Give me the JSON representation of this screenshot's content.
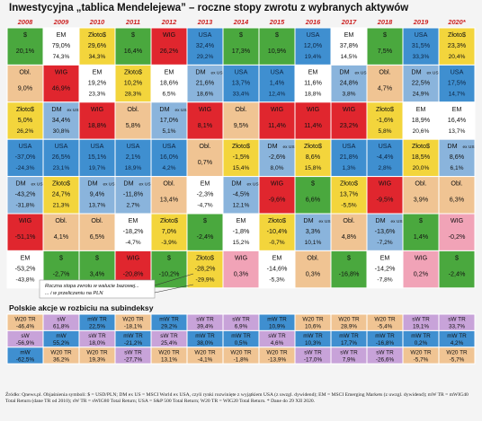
{
  "title": "Inwestycyjna „tablica Mendelejewa” – roczne stopy zwrotu z wybranych aktywów",
  "callout": [
    "Roczna stopa zwrotu w walucie bazowej...",
    "... i w przeliczeniu na PLN"
  ],
  "subtitle": "Polskie akcje w rozbiciu na subindeksy",
  "footnote": "Źródło: Qnews.pl. Objaśnienia symboli: $ = USD/PLN; DM ex US = MSCI World ex USA, czyli rynki rozwinięte z wyjątkiem USA (z uwzgl. dywidend); EM = MSCI Emerging Markets (z uwzgl. dywidend); mW TR = mWIG40 Total Return (dane TR od 2010); sW TR = sWIG80 Total Return; USA = S&P 500 Total Return; W20 TR = WIG20 Total Return. * Dane do 29 XII 2020.",
  "colors": {
    "header": "#cc1f1f",
    "$": "#4aa83e",
    "EM": "#ffffff",
    "Złoto$": "#f3d53c",
    "Obl.": "#f0c493",
    "WIG": "#e0262e",
    "USA": "#3f8fd0",
    "DM": "#8ab4dc",
    "WIG_light": "#f1a3b7",
    "W20": "#f0c493",
    "mW": "#3f8fd0",
    "sW": "#c8a3d9"
  },
  "chart_data": {
    "type": "table",
    "years": [
      "2008",
      "2009",
      "2010",
      "2011",
      "2012",
      "2013",
      "2014",
      "2015",
      "2016",
      "2017",
      "2018",
      "2019",
      "2020*"
    ],
    "columns": [
      [
        {
          "k": "$",
          "n": "$",
          "v": [
            "20,1%"
          ]
        },
        {
          "k": "Obl.",
          "n": "Obl.",
          "v": [
            "9,0%"
          ]
        },
        {
          "k": "Złoto$",
          "n": "Złoto$",
          "v": [
            "5,0%",
            "26,2%"
          ]
        },
        {
          "k": "USA",
          "n": "USA",
          "v": [
            "-37,0%",
            "-24,3%"
          ]
        },
        {
          "k": "DM",
          "n": "DM",
          "x": "ex US",
          "v": [
            "-43,2%",
            "-31,8%"
          ]
        },
        {
          "k": "WIG",
          "n": "WIG",
          "v": [
            "-51,1%"
          ]
        },
        {
          "k": "EM",
          "n": "EM",
          "v": [
            "-53,2%",
            "-43,8%"
          ]
        }
      ],
      [
        {
          "k": "EM",
          "n": "EM",
          "v": [
            "79,0%",
            "74,3%"
          ]
        },
        {
          "k": "WIG",
          "n": "WIG",
          "v": [
            "46,9%"
          ]
        },
        {
          "k": "DM",
          "n": "DM",
          "x": "ex US",
          "v": [
            "34,4%",
            "30,8%"
          ]
        },
        {
          "k": "USA",
          "n": "USA",
          "v": [
            "26,5%",
            "23,1%"
          ]
        },
        {
          "k": "Złoto$",
          "n": "Złoto$",
          "v": [
            "24,7%",
            "21,3%"
          ]
        },
        {
          "k": "Obl.",
          "n": "Obl.",
          "v": [
            "4,1%"
          ]
        },
        {
          "k": "$",
          "n": "$",
          "v": [
            "-2,7%"
          ]
        }
      ],
      [
        {
          "k": "Złoto$",
          "n": "Złoto$",
          "v": [
            "29,6%",
            "34,3%"
          ]
        },
        {
          "k": "EM",
          "n": "EM",
          "v": [
            "19,2%",
            "23,3%"
          ]
        },
        {
          "k": "WIG",
          "n": "WIG",
          "v": [
            "18,8%"
          ]
        },
        {
          "k": "USA",
          "n": "USA",
          "v": [
            "15,1%",
            "19,7%"
          ]
        },
        {
          "k": "DM",
          "n": "DM",
          "x": "ex US",
          "v": [
            "9,4%",
            "13,7%"
          ]
        },
        {
          "k": "Obl.",
          "n": "Obl.",
          "v": [
            "6,5%"
          ]
        },
        {
          "k": "$",
          "n": "$",
          "v": [
            "3,4%"
          ]
        }
      ],
      [
        {
          "k": "$",
          "n": "$",
          "v": [
            "16,4%"
          ]
        },
        {
          "k": "Złoto$",
          "n": "Złoto$",
          "v": [
            "10,2%",
            "28,3%"
          ]
        },
        {
          "k": "Obl.",
          "n": "Obl.",
          "v": [
            "5,8%"
          ]
        },
        {
          "k": "USA",
          "n": "USA",
          "v": [
            "2,1%",
            "18,9%"
          ]
        },
        {
          "k": "DM",
          "n": "DM",
          "x": "ex US",
          "v": [
            "-11,8%",
            "2,7%"
          ]
        },
        {
          "k": "EM",
          "n": "EM",
          "v": [
            "-18,2%",
            "-4,7%"
          ]
        },
        {
          "k": "WIG",
          "n": "WIG",
          "v": [
            "-20,8%"
          ]
        }
      ],
      [
        {
          "k": "WIG",
          "n": "WIG",
          "v": [
            "26,2%"
          ]
        },
        {
          "k": "EM",
          "n": "EM",
          "v": [
            "18,6%",
            "6,5%"
          ]
        },
        {
          "k": "DM",
          "n": "DM",
          "x": "ex US",
          "v": [
            "17,0%",
            "5,1%"
          ]
        },
        {
          "k": "USA",
          "n": "USA",
          "v": [
            "16,0%",
            "4,2%"
          ]
        },
        {
          "k": "Obl.",
          "n": "Obl.",
          "v": [
            "13,4%"
          ]
        },
        {
          "k": "Złoto$",
          "n": "Złoto$",
          "v": [
            "7,0%",
            "-3,9%"
          ]
        },
        {
          "k": "$",
          "n": "$",
          "v": [
            "-10,2%"
          ]
        }
      ],
      [
        {
          "k": "USA",
          "n": "USA",
          "v": [
            "32,4%",
            "29,2%"
          ]
        },
        {
          "k": "DM",
          "n": "DM",
          "x": "ex US",
          "v": [
            "21,6%",
            "18,6%"
          ]
        },
        {
          "k": "WIG",
          "n": "WIG",
          "v": [
            "8,1%"
          ]
        },
        {
          "k": "Obl.",
          "n": "Obl.",
          "v": [
            "0,7%"
          ]
        },
        {
          "k": "EM",
          "n": "EM",
          "v": [
            "-2,3%",
            "-4,7%"
          ]
        },
        {
          "k": "$",
          "n": "$",
          "v": [
            "-2,4%"
          ]
        },
        {
          "k": "Złoto$",
          "n": "Złoto$",
          "v": [
            "-28,2%",
            "-29,9%"
          ]
        }
      ],
      [
        {
          "k": "$",
          "n": "$",
          "v": [
            "17,3%"
          ]
        },
        {
          "k": "USA",
          "n": "USA",
          "v": [
            "13,7%",
            "33,4%"
          ]
        },
        {
          "k": "Obl.",
          "n": "Obl.",
          "v": [
            "9,5%"
          ]
        },
        {
          "k": "Złoto$",
          "n": "Złoto$",
          "v": [
            "-1,5%",
            "15,4%"
          ]
        },
        {
          "k": "DM",
          "n": "DM",
          "x": "ex US",
          "v": [
            "-4,5%",
            "12,1%"
          ]
        },
        {
          "k": "EM",
          "n": "EM",
          "v": [
            "-1,8%",
            "15,2%"
          ]
        },
        {
          "k": "WIG",
          "n": "WIG",
          "v": [
            "0,3%"
          ]
        }
      ],
      [
        {
          "k": "$",
          "n": "$",
          "v": [
            "10,9%"
          ]
        },
        {
          "k": "USA",
          "n": "USA",
          "v": [
            "1,4%",
            "12,4%"
          ]
        },
        {
          "k": "WIG",
          "n": "WIG",
          "v": [
            "11,4%"
          ]
        },
        {
          "k": "DM",
          "n": "DM",
          "x": "ex US",
          "v": [
            "-2,6%",
            "8,0%"
          ]
        },
        {
          "k": "WIG",
          "n": "WIG",
          "v": [
            "-9,6%"
          ]
        },
        {
          "k": "Złoto$",
          "n": "Złoto$",
          "v": [
            "-10,4%",
            "-0,7%"
          ]
        },
        {
          "k": "EM",
          "n": "EM",
          "v": [
            "-14,6%",
            "-5,3%"
          ]
        }
      ],
      [
        {
          "k": "USA",
          "n": "USA",
          "v": [
            "12,0%",
            "19,4%"
          ]
        },
        {
          "k": "EM",
          "n": "EM",
          "v": [
            "11,6%",
            "18,8%"
          ]
        },
        {
          "k": "WIG",
          "n": "WIG",
          "v": [
            "11,4%"
          ]
        },
        {
          "k": "Złoto$",
          "n": "Złoto$",
          "v": [
            "8,6%",
            "15,8%"
          ]
        },
        {
          "k": "$",
          "n": "$",
          "v": [
            "6,6%"
          ]
        },
        {
          "k": "DM",
          "n": "DM",
          "x": "ex US",
          "v": [
            "3,3%",
            "10,1%"
          ]
        },
        {
          "k": "Obl.",
          "n": "Obl.",
          "v": [
            "0,3%"
          ]
        }
      ],
      [
        {
          "k": "EM",
          "n": "EM",
          "v": [
            "37,8%",
            "14,5%"
          ]
        },
        {
          "k": "DM",
          "n": "DM",
          "x": "ex US",
          "v": [
            "24,8%",
            "3,8%"
          ]
        },
        {
          "k": "WIG",
          "n": "WIG",
          "v": [
            "23,2%"
          ]
        },
        {
          "k": "USA",
          "n": "USA",
          "v": [
            "21,8%",
            "1,3%"
          ]
        },
        {
          "k": "Złoto$",
          "n": "Złoto$",
          "v": [
            "13,7%",
            "-5,5%"
          ]
        },
        {
          "k": "Obl.",
          "n": "Obl.",
          "v": [
            "4,8%"
          ]
        },
        {
          "k": "$",
          "n": "$",
          "v": [
            "-16,8%"
          ]
        }
      ],
      [
        {
          "k": "$",
          "n": "$",
          "v": [
            "7,5%"
          ]
        },
        {
          "k": "Obl.",
          "n": "Obl.",
          "v": [
            "4,7%"
          ]
        },
        {
          "k": "Złoto$",
          "n": "Złoto$",
          "v": [
            "-1,6%",
            "5,8%"
          ]
        },
        {
          "k": "USA",
          "n": "USA",
          "v": [
            "-4,4%",
            "2,8%"
          ]
        },
        {
          "k": "WIG",
          "n": "WIG",
          "v": [
            "-9,5%"
          ]
        },
        {
          "k": "DM",
          "n": "DM",
          "x": "ex US",
          "v": [
            "-13,6%",
            "-7,2%"
          ]
        },
        {
          "k": "EM",
          "n": "EM",
          "v": [
            "-14,2%",
            "-7,8%"
          ]
        }
      ],
      [
        {
          "k": "USA",
          "n": "USA",
          "v": [
            "31,5%",
            "33,3%"
          ]
        },
        {
          "k": "DM",
          "n": "DM",
          "x": "ex US",
          "v": [
            "22,5%",
            "24,9%"
          ]
        },
        {
          "k": "EM",
          "n": "EM",
          "v": [
            "18,9%",
            "20,6%"
          ]
        },
        {
          "k": "Złoto$",
          "n": "Złoto$",
          "v": [
            "18,5%",
            "20,0%"
          ]
        },
        {
          "k": "Obl.",
          "n": "Obl.",
          "v": [
            "3,9%"
          ]
        },
        {
          "k": "$",
          "n": "$",
          "v": [
            "1,4%"
          ]
        },
        {
          "k": "WIG",
          "n": "WIG",
          "v": [
            "0,2%"
          ]
        }
      ],
      [
        {
          "k": "Złoto$",
          "n": "Złoto$",
          "v": [
            "23,3%",
            "20,4%"
          ]
        },
        {
          "k": "USA",
          "n": "USA",
          "v": [
            "17,5%",
            "14,7%"
          ]
        },
        {
          "k": "EM",
          "n": "EM",
          "v": [
            "16,4%",
            "13,7%"
          ]
        },
        {
          "k": "DM",
          "n": "DM",
          "x": "ex US",
          "v": [
            "8,6%",
            "6,1%"
          ]
        },
        {
          "k": "Obl.",
          "n": "Obl.",
          "v": [
            "6,3%"
          ]
        },
        {
          "k": "WIG",
          "n": "WIG",
          "v": [
            "-0,2%"
          ]
        },
        {
          "k": "$",
          "n": "$",
          "v": [
            "-2,4%"
          ]
        }
      ]
    ],
    "sub_index": [
      [
        {
          "k": "W20",
          "n": "W20 TR",
          "v": "-46,4%"
        },
        {
          "k": "sW",
          "n": "sW",
          "v": "-56,9%"
        },
        {
          "k": "mW",
          "n": "mW",
          "v": "-62,5%"
        }
      ],
      [
        {
          "k": "sW",
          "n": "sW",
          "v": "61,8%"
        },
        {
          "k": "mW",
          "n": "mW",
          "v": "55,2%"
        },
        {
          "k": "W20",
          "n": "W20 TR",
          "v": "36,2%"
        }
      ],
      [
        {
          "k": "mW",
          "n": "mW TR",
          "v": "22,5%"
        },
        {
          "k": "sW",
          "n": "sW TR",
          "v": "18,0%"
        },
        {
          "k": "W20",
          "n": "W20 TR",
          "v": "19,3%"
        }
      ],
      [
        {
          "k": "W20",
          "n": "W20 TR",
          "v": "-18,1%"
        },
        {
          "k": "mW",
          "n": "mW TR",
          "v": "-21,2%"
        },
        {
          "k": "sW",
          "n": "sW TR",
          "v": "-27,7%"
        }
      ],
      [
        {
          "k": "mW",
          "n": "mW TR",
          "v": "29,2%"
        },
        {
          "k": "sW",
          "n": "sW TR",
          "v": "25,4%"
        },
        {
          "k": "W20",
          "n": "W20 TR",
          "v": "13,1%"
        }
      ],
      [
        {
          "k": "sW",
          "n": "sW TR",
          "v": "39,4%"
        },
        {
          "k": "mW",
          "n": "mW TR",
          "v": "38,0%"
        },
        {
          "k": "W20",
          "n": "W20 TR",
          "v": "-4,1%"
        }
      ],
      [
        {
          "k": "sW",
          "n": "sW TR",
          "v": "6,9%"
        },
        {
          "k": "mW",
          "n": "mW TR",
          "v": "0,5%"
        },
        {
          "k": "W20",
          "n": "W20 TR",
          "v": "-1,8%"
        }
      ],
      [
        {
          "k": "mW",
          "n": "mW TR",
          "v": "10,9%"
        },
        {
          "k": "sW",
          "n": "sW TR",
          "v": "4,6%"
        },
        {
          "k": "W20",
          "n": "W20 TR",
          "v": "-13,9%"
        }
      ],
      [
        {
          "k": "W20",
          "n": "W20 TR",
          "v": "10,6%"
        },
        {
          "k": "mW",
          "n": "mW TR",
          "v": "10,3%"
        },
        {
          "k": "sW",
          "n": "sW TR",
          "v": "-17,0%"
        }
      ],
      [
        {
          "k": "W20",
          "n": "W20 TR",
          "v": "28,9%"
        },
        {
          "k": "mW",
          "n": "mW TR",
          "v": "17,7%"
        },
        {
          "k": "sW",
          "n": "sW TR",
          "v": "7,9%"
        }
      ],
      [
        {
          "k": "W20",
          "n": "W20 TR",
          "v": "-5,4%"
        },
        {
          "k": "mW",
          "n": "mW TR",
          "v": "-16,8%"
        },
        {
          "k": "sW",
          "n": "sW TR",
          "v": "-26,6%"
        }
      ],
      [
        {
          "k": "sW",
          "n": "sW TR",
          "v": "19,1%"
        },
        {
          "k": "mW",
          "n": "mW TR",
          "v": "0,2%"
        },
        {
          "k": "W20",
          "n": "W20 TR",
          "v": "-5,7%"
        }
      ],
      [
        {
          "k": "sW",
          "n": "sW TR",
          "v": "33,7%"
        },
        {
          "k": "mW",
          "n": "mW TR",
          "v": "4,2%"
        },
        {
          "k": "W20",
          "n": "W20 TR",
          "v": "-5,7%"
        }
      ]
    ]
  }
}
